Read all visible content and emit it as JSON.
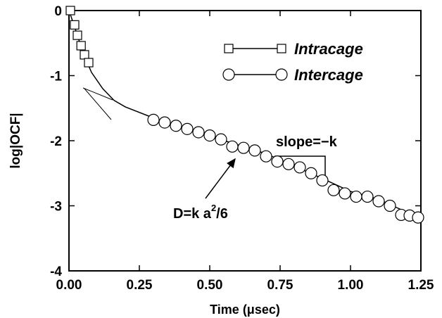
{
  "chart_data": {
    "type": "scatter",
    "xlabel": "Time (μsec)",
    "ylabel": "log|OCF|",
    "xlim": [
      0,
      1.25
    ],
    "ylim": [
      -4,
      0
    ],
    "xticks": [
      {
        "value": 0,
        "label": "0.00"
      },
      {
        "value": 0.25,
        "label": "0.25"
      },
      {
        "value": 0.5,
        "label": "0.50"
      },
      {
        "value": 0.75,
        "label": "0.75"
      },
      {
        "value": 1,
        "label": "1.00"
      },
      {
        "value": 1.25,
        "label": "1.25"
      }
    ],
    "yticks": [
      0,
      -1,
      -2,
      -3,
      -4
    ],
    "legend": "upper right",
    "annotations": [
      "slope=−k",
      "D=k a",
      "2",
      "/6"
    ],
    "series": [
      {
        "name": "Intracage",
        "marker": "square",
        "color": "#000000",
        "x": [
          0.005,
          0.02,
          0.03,
          0.043,
          0.055,
          0.07
        ],
        "values": [
          0,
          -0.22,
          -0.38,
          -0.54,
          -0.68,
          -0.8
        ]
      },
      {
        "name": "Intercage",
        "marker": "circle",
        "color": "#000000",
        "x": [
          0.3,
          0.34,
          0.38,
          0.42,
          0.46,
          0.5,
          0.54,
          0.58,
          0.62,
          0.66,
          0.7,
          0.74,
          0.78,
          0.82,
          0.86,
          0.9,
          0.94,
          0.98,
          1.02,
          1.06,
          1.1,
          1.14,
          1.18,
          1.21,
          1.24
        ],
        "values": [
          -1.68,
          -1.72,
          -1.77,
          -1.82,
          -1.87,
          -1.92,
          -1.98,
          -2.09,
          -2.11,
          -2.15,
          -2.24,
          -2.32,
          -2.36,
          -2.41,
          -2.5,
          -2.61,
          -2.76,
          -2.81,
          -2.86,
          -2.86,
          -2.93,
          -3.0,
          -3.14,
          -3.15,
          -3.18
        ]
      },
      {
        "marker": "none",
        "color": "#000000",
        "x": [
          0,
          0.02,
          0.05,
          0.08,
          0.12,
          0.16,
          0.2,
          0.3,
          0.5,
          0.7,
          0.9,
          1.0,
          1.1,
          1.25
        ],
        "values": [
          0,
          -0.25,
          -0.65,
          -0.95,
          -1.2,
          -1.38,
          -1.48,
          -1.65,
          -1.93,
          -2.2,
          -2.58,
          -2.78,
          -2.9,
          -3.2
        ]
      }
    ]
  }
}
